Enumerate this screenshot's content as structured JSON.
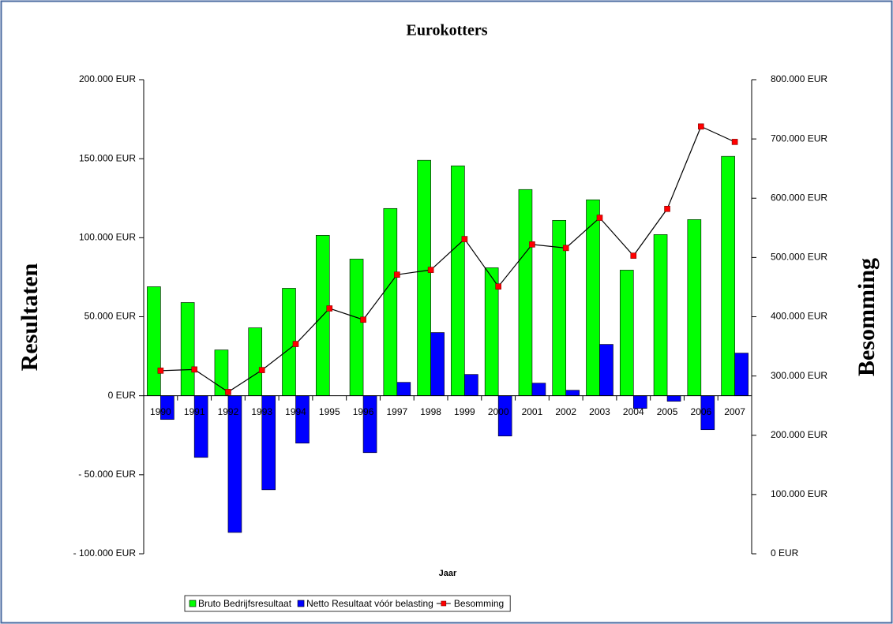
{
  "chart_data": {
    "type": "bar-line",
    "title": "Eurokotters",
    "x_label": "Jaar",
    "y_label": "Resultaten",
    "y2_label": "Besomming",
    "categories": [
      "1990",
      "1991",
      "1992",
      "1993",
      "1994",
      "1995",
      "1996",
      "1997",
      "1998",
      "1999",
      "2000",
      "2001",
      "2002",
      "2003",
      "2004",
      "2005",
      "2006",
      "2007"
    ],
    "series": [
      {
        "name": "Bruto Bedrijfsresultaat",
        "type": "bar",
        "color": "#00ff00",
        "values": [
          69000,
          59000,
          29000,
          43000,
          68000,
          101500,
          86500,
          118500,
          149000,
          145500,
          81000,
          130500,
          111000,
          124000,
          79500,
          102000,
          111500,
          151500
        ]
      },
      {
        "name": "Netto Resultaat vóór belasting",
        "type": "bar",
        "color": "#0000ff",
        "values": [
          -15000,
          -39000,
          -86500,
          -59500,
          -30000,
          0,
          -36000,
          8500,
          40000,
          13500,
          -25500,
          8000,
          3500,
          32500,
          -8000,
          -3500,
          -21500,
          27000
        ]
      },
      {
        "name": "Besomming",
        "type": "line",
        "axis": "y2",
        "color": "#000000",
        "marker_color": "#ff0000",
        "values": [
          309000,
          311000,
          273000,
          310000,
          354000,
          414000,
          395000,
          471000,
          479000,
          531000,
          451000,
          522000,
          516000,
          567000,
          503000,
          582000,
          721000,
          695000
        ]
      }
    ],
    "ylim": [
      -100000,
      200000
    ],
    "yticks": [
      {
        "value": -100000,
        "label": "- 100.000 EUR"
      },
      {
        "value": -50000,
        "label": "- 50.000 EUR"
      },
      {
        "value": 0,
        "label": "0 EUR"
      },
      {
        "value": 50000,
        "label": "50.000 EUR"
      },
      {
        "value": 100000,
        "label": "100.000 EUR"
      },
      {
        "value": 150000,
        "label": "150.000 EUR"
      },
      {
        "value": 200000,
        "label": "200.000 EUR"
      }
    ],
    "y2lim": [
      0,
      800000
    ],
    "y2ticks": [
      {
        "value": 0,
        "label": "0 EUR"
      },
      {
        "value": 100000,
        "label": "100.000 EUR"
      },
      {
        "value": 200000,
        "label": "200.000 EUR"
      },
      {
        "value": 300000,
        "label": "300.000 EUR"
      },
      {
        "value": 400000,
        "label": "400.000 EUR"
      },
      {
        "value": 500000,
        "label": "500.000 EUR"
      },
      {
        "value": 600000,
        "label": "600.000 EUR"
      },
      {
        "value": 700000,
        "label": "700.000 EUR"
      },
      {
        "value": 800000,
        "label": "800.000 EUR"
      }
    ],
    "grid": false,
    "legend": "bottom"
  }
}
